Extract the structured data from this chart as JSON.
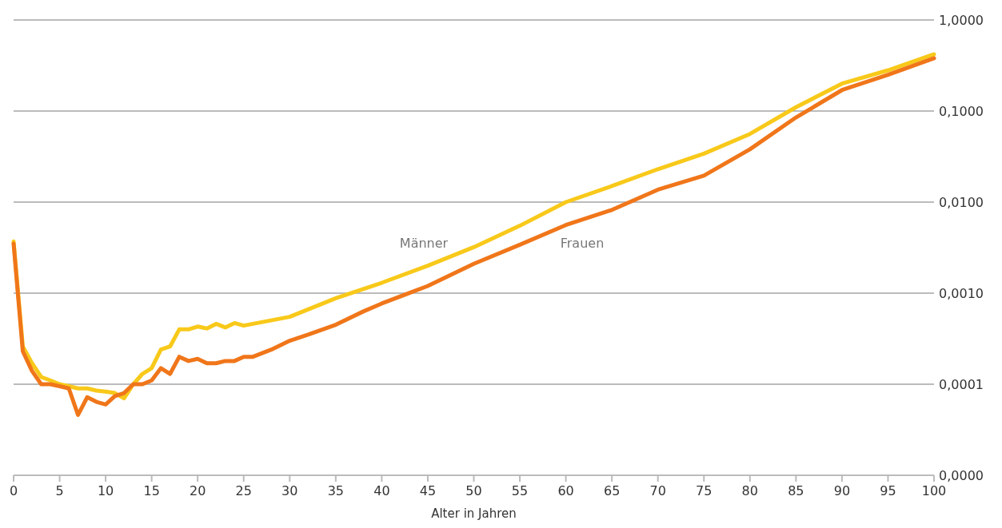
{
  "chart_data": {
    "type": "line",
    "xlabel": "Alter in Jahren",
    "log": "y",
    "grid": "y",
    "legend": false,
    "line_style": "solid",
    "marker": "none",
    "xlim": [
      0,
      100
    ],
    "xticks": [
      0,
      5,
      10,
      15,
      20,
      25,
      30,
      35,
      40,
      45,
      50,
      55,
      60,
      65,
      70,
      75,
      80,
      85,
      90,
      95,
      100
    ],
    "ylim": [
      1e-05,
      1
    ],
    "yticks": [
      {
        "value": 1e-05,
        "label": "0,0000"
      },
      {
        "value": 0.0001,
        "label": "0,0001"
      },
      {
        "value": 0.001,
        "label": "0,0010"
      },
      {
        "value": 0.01,
        "label": "0,0100"
      },
      {
        "value": 0.1,
        "label": "0,1000"
      },
      {
        "value": 1,
        "label": "1,0000"
      }
    ],
    "series": [
      {
        "name": "Männer",
        "color": "#f8c91a",
        "x": [
          0,
          1,
          2,
          3,
          4,
          5,
          6,
          7,
          8,
          9,
          10,
          11,
          12,
          13,
          14,
          15,
          16,
          17,
          18,
          19,
          20,
          21,
          22,
          23,
          24,
          25,
          30,
          35,
          40,
          45,
          50,
          55,
          60,
          65,
          70,
          75,
          80,
          85,
          90,
          95,
          100
        ],
        "values": [
          0.0037,
          0.00026,
          0.00017,
          0.00012,
          0.00011,
          0.0001,
          9.5e-05,
          9e-05,
          9e-05,
          8.5e-05,
          8.3e-05,
          8e-05,
          7e-05,
          0.0001,
          0.00013,
          0.00015,
          0.00024,
          0.00026,
          0.0004,
          0.0004,
          0.00043,
          0.00041,
          0.00046,
          0.00042,
          0.00047,
          0.00044,
          0.00055,
          0.00088,
          0.0013,
          0.002,
          0.0032,
          0.0055,
          0.01,
          0.015,
          0.023,
          0.034,
          0.056,
          0.11,
          0.2,
          0.28,
          0.42
        ]
      },
      {
        "name": "Frauen",
        "color": "#f0761a",
        "x": [
          0,
          1,
          2,
          3,
          4,
          5,
          6,
          7,
          8,
          9,
          10,
          11,
          12,
          13,
          14,
          15,
          16,
          17,
          18,
          19,
          20,
          21,
          22,
          23,
          24,
          25,
          26,
          28,
          30,
          32,
          35,
          38,
          40,
          45,
          50,
          55,
          60,
          65,
          70,
          75,
          80,
          85,
          90,
          95,
          100
        ],
        "values": [
          0.0035,
          0.00023,
          0.00014,
          0.0001,
          0.0001,
          9.5e-05,
          9e-05,
          4.6e-05,
          7.2e-05,
          6.4e-05,
          6e-05,
          7.4e-05,
          8e-05,
          0.0001,
          0.0001,
          0.00011,
          0.00015,
          0.00013,
          0.0002,
          0.00018,
          0.00019,
          0.00017,
          0.00017,
          0.00018,
          0.00018,
          0.0002,
          0.0002,
          0.00024,
          0.0003,
          0.00035,
          0.00045,
          0.00063,
          0.00077,
          0.0012,
          0.0021,
          0.0034,
          0.0056,
          0.0082,
          0.0137,
          0.0195,
          0.038,
          0.085,
          0.17,
          0.25,
          0.38
        ]
      }
    ]
  }
}
